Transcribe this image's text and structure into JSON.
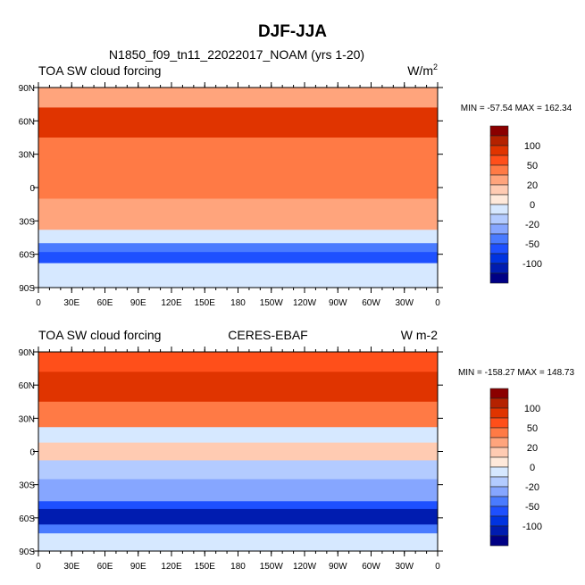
{
  "chart_data": [
    {
      "type": "heatmap",
      "main_title": "DJF-JJA",
      "left_title": "TOA SW cloud forcing",
      "center_title": "N1850_f09_tn11_22022017_NOAM (yrs 1-20)",
      "units": "W/m",
      "units_sup": "2",
      "stats": "MIN = -57.54 MAX = 162.34",
      "xticks": [
        "0",
        "30E",
        "60E",
        "90E",
        "120E",
        "150E",
        "180",
        "150W",
        "120W",
        "90W",
        "60W",
        "30W",
        "0"
      ],
      "yticks": [
        "90N",
        "60N",
        "30N",
        "0",
        "30S",
        "60S",
        "90S"
      ],
      "zonal_bands": [
        {
          "lat": [
            90,
            72
          ],
          "value": 25
        },
        {
          "lat": [
            72,
            45
          ],
          "value": 80
        },
        {
          "lat": [
            45,
            25
          ],
          "value": 45
        },
        {
          "lat": [
            25,
            -10
          ],
          "value": 35
        },
        {
          "lat": [
            -10,
            -38
          ],
          "value": 22
        },
        {
          "lat": [
            -38,
            -50
          ],
          "value": -5
        },
        {
          "lat": [
            -50,
            -58
          ],
          "value": -35
        },
        {
          "lat": [
            -58,
            -68
          ],
          "value": -60
        },
        {
          "lat": [
            -68,
            -90
          ],
          "value": -5
        }
      ]
    },
    {
      "type": "heatmap",
      "left_title": "TOA SW cloud forcing",
      "center_title": "CERES-EBAF",
      "units": "W m-2",
      "units_sup": "",
      "stats": "MIN = -158.27 MAX = 148.73",
      "xticks": [
        "0",
        "30E",
        "60E",
        "90E",
        "120E",
        "150E",
        "180",
        "150W",
        "120W",
        "90W",
        "60W",
        "30W",
        "0"
      ],
      "yticks": [
        "90N",
        "60N",
        "30N",
        "0",
        "30S",
        "60S",
        "90S"
      ],
      "zonal_bands": [
        {
          "lat": [
            90,
            72
          ],
          "value": 55
        },
        {
          "lat": [
            72,
            45
          ],
          "value": 80
        },
        {
          "lat": [
            45,
            22
          ],
          "value": 40
        },
        {
          "lat": [
            22,
            8
          ],
          "value": -5
        },
        {
          "lat": [
            8,
            -8
          ],
          "value": 15
        },
        {
          "lat": [
            -8,
            -25
          ],
          "value": -15
        },
        {
          "lat": [
            -25,
            -45
          ],
          "value": -25
        },
        {
          "lat": [
            -45,
            -52
          ],
          "value": -60
        },
        {
          "lat": [
            -52,
            -66
          ],
          "value": -110
        },
        {
          "lat": [
            -66,
            -74
          ],
          "value": -35
        },
        {
          "lat": [
            -74,
            -90
          ],
          "value": -5
        }
      ]
    }
  ],
  "colorbar": {
    "levels": [
      125,
      100,
      75,
      50,
      30,
      20,
      10,
      0,
      -10,
      -20,
      -30,
      -50,
      -75,
      -100,
      -125
    ],
    "labels": [
      "100",
      "50",
      "20",
      "0",
      "-20",
      "-50",
      "-100"
    ],
    "colors": [
      "#8b0000",
      "#b52200",
      "#e03400",
      "#ff4f1a",
      "#ff7a45",
      "#ffa47c",
      "#ffcbb2",
      "#ffe9da",
      "#d6e8ff",
      "#b3cbff",
      "#86a6ff",
      "#4a7bff",
      "#1e50ff",
      "#0033e0",
      "#001cb0",
      "#000085"
    ]
  }
}
